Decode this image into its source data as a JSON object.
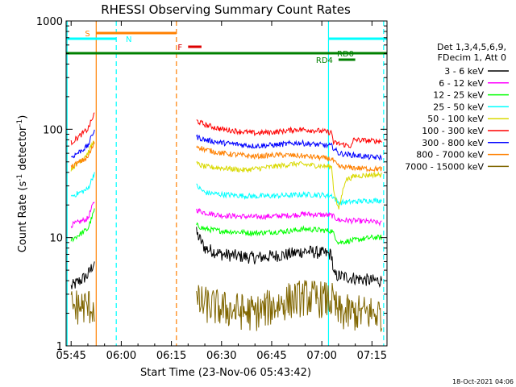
{
  "chart_data": {
    "type": "line",
    "title": "RHESSI Observing Summary Count Rates",
    "xlabel": "Start Time (23-Nov-06 05:43:42)",
    "ylabel_prefix": "Count Rate (s",
    "ylabel_sup1": "-1",
    "ylabel_mid": " detector",
    "ylabel_sup2": "-1",
    "ylabel_suffix": ")",
    "ylog": true,
    "ylim": [
      1,
      1000
    ],
    "xlim_minutes": [
      -1.5,
      94.5
    ],
    "x_ticks": [
      {
        "t": 0,
        "label": "05:45"
      },
      {
        "t": 15,
        "label": "06:00"
      },
      {
        "t": 30,
        "label": "06:15"
      },
      {
        "t": 45,
        "label": "06:30"
      },
      {
        "t": 60,
        "label": "06:45"
      },
      {
        "t": 75,
        "label": "07:00"
      },
      {
        "t": 90,
        "label": "07:15"
      }
    ],
    "y_ticks": [
      {
        "v": 1,
        "label": "1"
      },
      {
        "v": 10,
        "label": "10"
      },
      {
        "v": 100,
        "label": "100"
      },
      {
        "v": 1000,
        "label": "1000"
      }
    ],
    "legend_header": [
      "Det 1,3,4,5,6,9,",
      "FDecim 1, Att 0"
    ],
    "legend_placement": "right",
    "timestamp": "18-Oct-2021 04:06",
    "series": [
      {
        "name": "3 - 6 keV",
        "color": "#000000",
        "seg1": [
          [
            0,
            3.5
          ],
          [
            5,
            4.5
          ],
          [
            7,
            6
          ]
        ],
        "seg2": [
          [
            37.5,
            11
          ],
          [
            40,
            8
          ],
          [
            45,
            7
          ],
          [
            55,
            6.5
          ],
          [
            65,
            7
          ],
          [
            70,
            7.5
          ],
          [
            78,
            7
          ],
          [
            78.5,
            4.5
          ],
          [
            90,
            4
          ],
          [
            93,
            4
          ]
        ]
      },
      {
        "name": "6 - 12 keV",
        "color": "#ff00ff",
        "seg1": [
          [
            0,
            13
          ],
          [
            5,
            15
          ],
          [
            7,
            22
          ]
        ],
        "seg2": [
          [
            37.5,
            18
          ],
          [
            40,
            17
          ],
          [
            45,
            16
          ],
          [
            55,
            15.5
          ],
          [
            65,
            16
          ],
          [
            70,
            16.5
          ],
          [
            78,
            16
          ],
          [
            80,
            14.5
          ],
          [
            90,
            14
          ],
          [
            93,
            13.5
          ]
        ]
      },
      {
        "name": "12 - 25 keV",
        "color": "#00ff00",
        "seg1": [
          [
            0,
            9.5
          ],
          [
            5,
            12
          ],
          [
            7,
            18
          ]
        ],
        "seg2": [
          [
            37.5,
            13
          ],
          [
            40,
            12
          ],
          [
            45,
            11.5
          ],
          [
            55,
            11
          ],
          [
            65,
            11.5
          ],
          [
            70,
            12
          ],
          [
            78,
            11.5
          ],
          [
            80,
            9
          ],
          [
            90,
            10
          ],
          [
            93,
            10
          ]
        ]
      },
      {
        "name": "25 - 50 keV",
        "color": "#00ffff",
        "seg1": [
          [
            0,
            24
          ],
          [
            5,
            28
          ],
          [
            7,
            40
          ]
        ],
        "seg2": [
          [
            37.5,
            30
          ],
          [
            40,
            26
          ],
          [
            45,
            25
          ],
          [
            55,
            24
          ],
          [
            65,
            24.5
          ],
          [
            70,
            25
          ],
          [
            78,
            24.5
          ],
          [
            80,
            21
          ],
          [
            90,
            22
          ],
          [
            93,
            22
          ]
        ]
      },
      {
        "name": "50 - 100 keV",
        "color": "#d9d900",
        "seg1": [
          [
            0,
            43
          ],
          [
            5,
            60
          ],
          [
            7,
            80
          ]
        ],
        "seg2": [
          [
            37.5,
            48
          ],
          [
            40,
            45
          ],
          [
            45,
            44
          ],
          [
            52,
            42
          ],
          [
            60,
            45
          ],
          [
            67,
            48
          ],
          [
            74,
            46
          ],
          [
            78,
            45
          ],
          [
            78.5,
            28
          ],
          [
            80,
            18
          ],
          [
            82,
            34
          ],
          [
            85,
            37
          ],
          [
            90,
            38
          ],
          [
            93,
            38
          ]
        ]
      },
      {
        "name": "100 - 300 keV",
        "color": "#ff0000",
        "seg1": [
          [
            0,
            75
          ],
          [
            5,
            100
          ],
          [
            7,
            140
          ]
        ],
        "seg2": [
          [
            37.5,
            120
          ],
          [
            40,
            110
          ],
          [
            45,
            100
          ],
          [
            55,
            92
          ],
          [
            62,
            95
          ],
          [
            68,
            100
          ],
          [
            74,
            97
          ],
          [
            78,
            93
          ],
          [
            78.5,
            75
          ],
          [
            84,
            70
          ],
          [
            84.5,
            80
          ],
          [
            90,
            78
          ],
          [
            93,
            78
          ]
        ]
      },
      {
        "name": "300 - 800 keV",
        "color": "#0000ff",
        "seg1": [
          [
            0,
            55
          ],
          [
            5,
            70
          ],
          [
            7,
            100
          ]
        ],
        "seg2": [
          [
            37.5,
            85
          ],
          [
            40,
            80
          ],
          [
            45,
            75
          ],
          [
            55,
            70
          ],
          [
            62,
            72
          ],
          [
            68,
            75
          ],
          [
            74,
            72
          ],
          [
            78,
            70
          ],
          [
            80,
            60
          ],
          [
            90,
            55
          ],
          [
            93,
            55
          ]
        ]
      },
      {
        "name": "800 - 7000 keV",
        "color": "#ff8000",
        "seg1": [
          [
            0,
            45
          ],
          [
            5,
            55
          ],
          [
            7,
            75
          ]
        ],
        "seg2": [
          [
            37.5,
            70
          ],
          [
            40,
            65
          ],
          [
            45,
            60
          ],
          [
            55,
            56
          ],
          [
            62,
            58
          ],
          [
            68,
            57
          ],
          [
            74,
            55
          ],
          [
            78,
            53
          ],
          [
            80,
            45
          ],
          [
            90,
            43
          ],
          [
            93,
            43
          ]
        ]
      },
      {
        "name": "7000 - 15000 keV",
        "color": "#806600",
        "seg1": [
          [
            0,
            2.3
          ],
          [
            7,
            2.3
          ]
        ],
        "seg2": [
          [
            37.5,
            2.5
          ],
          [
            45,
            2.2
          ],
          [
            55,
            2.0
          ],
          [
            65,
            2.6
          ],
          [
            70,
            2.8
          ],
          [
            78,
            2.6
          ],
          [
            80,
            2.0
          ],
          [
            93,
            2.0
          ]
        ]
      }
    ],
    "state_bars": [
      {
        "label": "S",
        "color": "#ff8000",
        "t_start": 7.5,
        "t_end": 31.5,
        "level": 1
      },
      {
        "label": "N",
        "color": "#00ffff",
        "t_start": -1.5,
        "t_end": 13.5,
        "level": 2
      },
      {
        "label": "",
        "color": "#00ffff",
        "t_start": 77,
        "t_end": 94.5,
        "level": 2
      },
      {
        "label": "F",
        "color": "#dd0000",
        "t_start": 35,
        "t_end": 39,
        "level": 3
      },
      {
        "label": "RD0",
        "color": "#008000",
        "t_start": -1.5,
        "t_end": 94.5,
        "level": 4
      },
      {
        "label": "RD4",
        "color": "#008000",
        "t_start": 80,
        "t_end": 85,
        "level": 5
      }
    ],
    "vlines": [
      {
        "t": 7.5,
        "color": "#ff8000",
        "dashed": false
      },
      {
        "t": 31.5,
        "color": "#ff8000",
        "dashed": true
      },
      {
        "t": 13.5,
        "color": "#00ffff",
        "dashed": true
      },
      {
        "t": 77,
        "color": "#00ffff",
        "dashed": false
      },
      {
        "t": 93.5,
        "color": "#00ffff",
        "dashed": true
      },
      {
        "t": -1.2,
        "color": "#00ffff",
        "dashed": false
      }
    ],
    "gap": {
      "t_start": 7.5,
      "t_end": 37.5
    },
    "grid": false
  }
}
